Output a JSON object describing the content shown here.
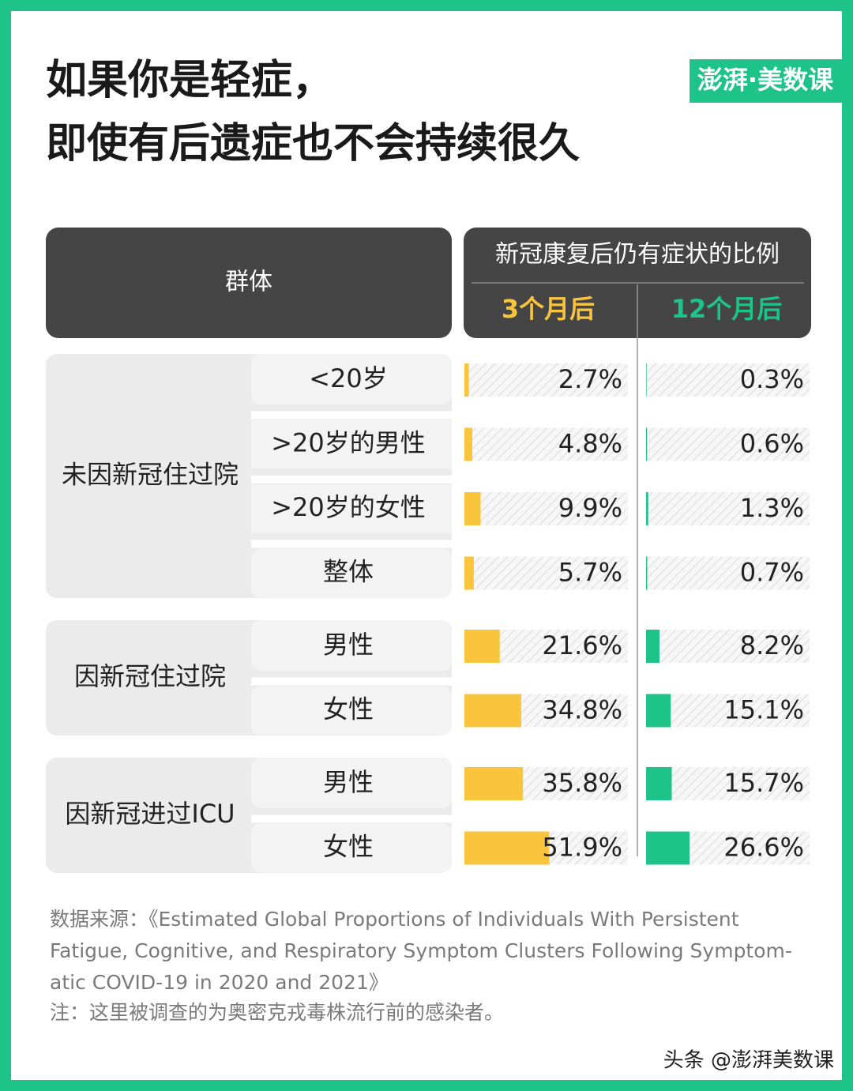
{
  "chart_data": {
    "type": "bar",
    "title_lines": [
      "如果你是轻症，",
      "即使有后遗症也不会持续很久"
    ],
    "logo": "澎湃·美数课",
    "group_header": "群体",
    "value_header": "新冠康复后仍有症状的比例",
    "groups": [
      {
        "label": "未因新冠住过院",
        "categories": [
          "<20岁",
          ">20岁的男性",
          ">20岁的女性",
          "整体"
        ]
      },
      {
        "label": "因新冠住过院",
        "categories": [
          "男性",
          "女性"
        ]
      },
      {
        "label": "因新冠进过ICU",
        "categories": [
          "男性",
          "女性"
        ]
      }
    ],
    "series": [
      {
        "name": "3个月后",
        "color": "#f9c53d",
        "values": [
          2.7,
          4.8,
          9.9,
          5.7,
          21.6,
          34.8,
          35.8,
          51.9
        ],
        "value_labels": [
          "2.7%",
          "4.8%",
          "9.9%",
          "5.7%",
          "21.6%",
          "34.8%",
          "35.8%",
          "51.9%"
        ]
      },
      {
        "name": "12个月后",
        "color": "#1ec38a",
        "values": [
          0.3,
          0.6,
          1.3,
          0.7,
          8.2,
          15.1,
          15.7,
          26.6
        ],
        "value_labels": [
          "0.3%",
          "0.6%",
          "1.3%",
          "0.7%",
          "8.2%",
          "15.1%",
          "15.7%",
          "26.6%"
        ]
      }
    ],
    "xlim": [
      0,
      100
    ],
    "source_lines": [
      "数据来源：《Estimated Global Proportions of Individuals With Persistent",
      "Fatigue, Cognitive, and Respiratory Symptom Clusters Following Symptom-",
      "atic COVID-19 in 2020 and 2021》"
    ],
    "note": "注：这里被调查的为奥密克戎毒株流行前的感染者。",
    "watermark": "头条 @澎湃美数课"
  }
}
